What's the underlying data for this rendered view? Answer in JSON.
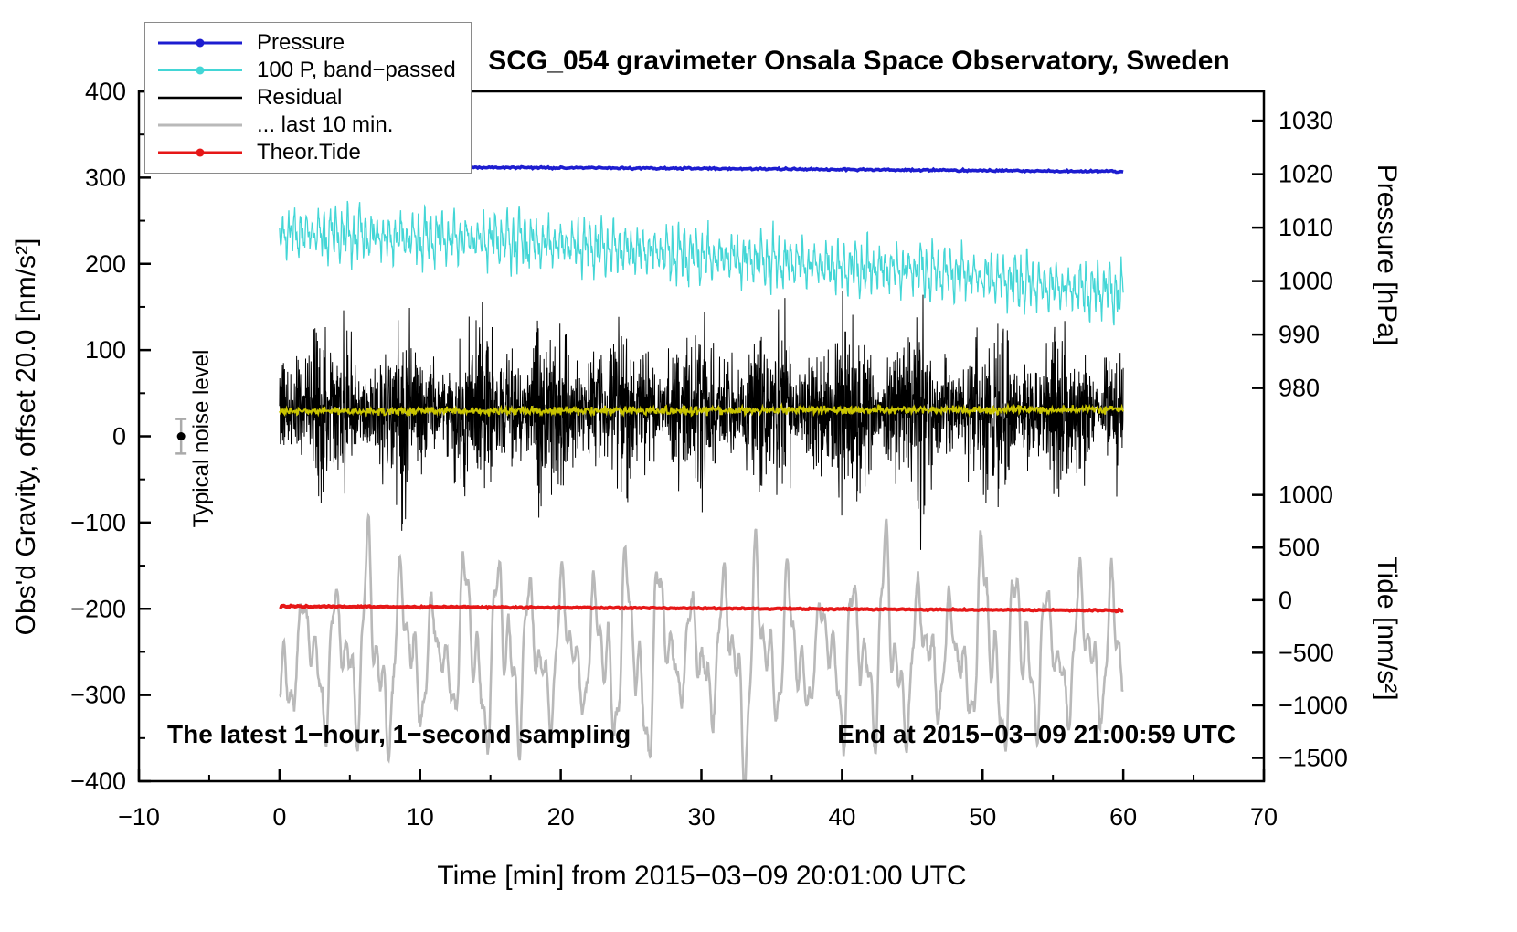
{
  "title": "SCG_054 gravimeter Onsala Space Observatory, Sweden",
  "legend": {
    "items": [
      {
        "label": "Pressure",
        "color": "#1d1dd0",
        "dot": true,
        "lw": 3
      },
      {
        "label": "100 P, band−passed",
        "color": "#43d6d6",
        "dot": true,
        "lw": 2
      },
      {
        "label": "Residual",
        "color": "#000000",
        "dot": false,
        "lw": 2.5
      },
      {
        "label": "... last 10 min.",
        "color": "#b9b9b9",
        "dot": false,
        "lw": 3
      },
      {
        "label": "Theor.Tide",
        "color": "#e61717",
        "dot": true,
        "lw": 3
      }
    ]
  },
  "annotations": {
    "sampling_note": "The latest 1−hour, 1−second sampling",
    "end_note": "End at 2015−03−09 21:00:59 UTC",
    "noise_label": "Typical noise level"
  },
  "chart_data": {
    "type": "line",
    "title": "SCG_054 gravimeter Onsala Space Observatory, Sweden",
    "xlabel": "Time [min] from 2015−03−09 20:01:00 UTC",
    "ylabel_left": "Obs'd Gravity, offset 20.0 [nm/s²]",
    "ylabel_right_top": "Pressure [hPa]",
    "ylabel_right_bottom": "Tide [nm/s²]",
    "xlim": [
      -10,
      70
    ],
    "ylim_left": [
      -400,
      400
    ],
    "grid": false,
    "legend_position": "top-left",
    "x_ticks": [
      {
        "v": -10,
        "label": "−10"
      },
      {
        "v": 0,
        "label": "0"
      },
      {
        "v": 10,
        "label": "10"
      },
      {
        "v": 20,
        "label": "20"
      },
      {
        "v": 30,
        "label": "30"
      },
      {
        "v": 40,
        "label": "40"
      },
      {
        "v": 50,
        "label": "50"
      },
      {
        "v": 60,
        "label": "60"
      },
      {
        "v": 70,
        "label": "70"
      }
    ],
    "y_ticks_left": [
      {
        "v": 400,
        "label": "400"
      },
      {
        "v": 300,
        "label": "300"
      },
      {
        "v": 200,
        "label": "200"
      },
      {
        "v": 100,
        "label": "100"
      },
      {
        "v": 0,
        "label": "0"
      },
      {
        "v": -100,
        "label": "−100"
      },
      {
        "v": -200,
        "label": "−200"
      },
      {
        "v": -300,
        "label": "−300"
      },
      {
        "v": -400,
        "label": "−400"
      }
    ],
    "pressure_axis_ticks": [
      {
        "v_gravity": 366,
        "label": "1030"
      },
      {
        "v_gravity": 304,
        "label": "1020"
      },
      {
        "v_gravity": 242,
        "label": "1010"
      },
      {
        "v_gravity": 180,
        "label": "1000"
      },
      {
        "v_gravity": 118,
        "label": "990"
      },
      {
        "v_gravity": 56,
        "label": "980"
      }
    ],
    "tide_axis_ticks": [
      {
        "v_gravity": -68,
        "label": "1000"
      },
      {
        "v_gravity": -129,
        "label": "500"
      },
      {
        "v_gravity": -190,
        "label": "0"
      },
      {
        "v_gravity": -251,
        "label": "−500"
      },
      {
        "v_gravity": -312,
        "label": "−1000"
      },
      {
        "v_gravity": -373,
        "label": "−1500"
      }
    ],
    "noise_marker": {
      "x": -7,
      "y": 0,
      "err": 20,
      "bar_color": "#aaaaaa",
      "dot_color": "#000000"
    },
    "series": [
      {
        "id": "last-10-min",
        "name": "... last 10 min.",
        "color": "#b9b9b9",
        "width": 2.6,
        "xrange": [
          0,
          60
        ],
        "step": 0.04,
        "seed": 55,
        "trend": [
          [
            0,
            -252
          ],
          [
            60,
            -252
          ]
        ],
        "comps": [
          [
            62,
            2.3
          ],
          [
            40,
            1.15
          ],
          [
            22,
            0.55
          ],
          [
            12,
            3.7
          ]
        ],
        "modVar": 0.45,
        "modPeriod": 9,
        "sigma": 3,
        "envVar": 0
      },
      {
        "id": "band-passed-pressure",
        "name": "100 P, band−passed",
        "color": "#43d6d6",
        "width": 1.3,
        "xrange": [
          0,
          60
        ],
        "step": 0.03,
        "seed": 22,
        "trend": [
          [
            0,
            237
          ],
          [
            8,
            231
          ],
          [
            16,
            228
          ],
          [
            24,
            218
          ],
          [
            32,
            207
          ],
          [
            40,
            196
          ],
          [
            48,
            190
          ],
          [
            56,
            172
          ],
          [
            60,
            167
          ]
        ],
        "comps": [
          [
            16,
            0.42
          ],
          [
            11,
            0.21
          ],
          [
            7,
            0.95
          ],
          [
            5,
            0.11
          ]
        ],
        "modVar": 0.35,
        "modPeriod": 6,
        "sigma": 4,
        "envVar": 0
      },
      {
        "id": "residual",
        "name": "Residual",
        "color": "#000000",
        "width": 1,
        "xrange": [
          0,
          60
        ],
        "step": 0.02,
        "seed": 33,
        "trend": [
          [
            0,
            30
          ],
          [
            60,
            30
          ]
        ],
        "sigma": 36,
        "envVar": 0.55,
        "envPeriod": 5.2
      },
      {
        "id": "residual-filtered",
        "name": "Residual (filtered)",
        "color": "#c9c400",
        "width": 2,
        "xrange": [
          0,
          60
        ],
        "step": 0.05,
        "seed": 44,
        "trend": [
          [
            0,
            29
          ],
          [
            60,
            31
          ]
        ],
        "sigma": 2.2,
        "envVar": 0
      },
      {
        "id": "theor-tide",
        "name": "Theor.Tide",
        "color": "#e61717",
        "width": 4,
        "xrange": [
          0,
          60
        ],
        "step": 0.1,
        "seed": 66,
        "trend": [
          [
            0,
            -197
          ],
          [
            60,
            -202
          ]
        ],
        "sigma": 0.4,
        "envVar": 0
      },
      {
        "id": "pressure",
        "name": "Pressure",
        "color": "#1d1dd0",
        "width": 3.6,
        "xrange": [
          0,
          60
        ],
        "step": 0.1,
        "seed": 11,
        "trend": [
          [
            0,
            313
          ],
          [
            30,
            310.5
          ],
          [
            60,
            307
          ]
        ],
        "sigma": 0.5,
        "envVar": 0
      }
    ]
  }
}
